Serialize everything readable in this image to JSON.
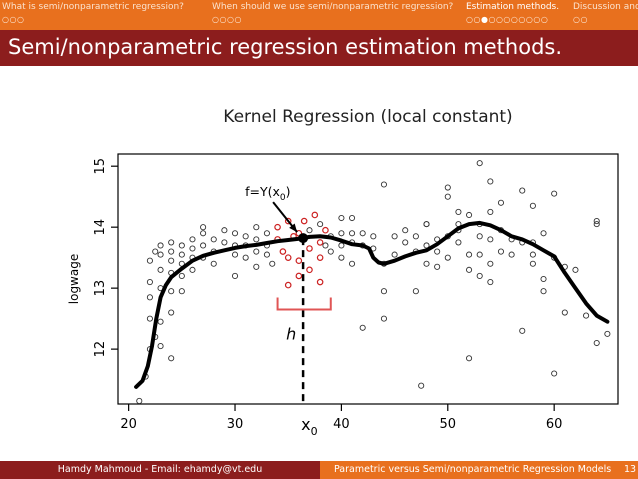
{
  "nav": {
    "sections": [
      {
        "label": "What is semi/nonparametric regression?",
        "dots": "○○○",
        "current": -1
      },
      {
        "label": "When should we use semi/nonparametric regression?",
        "dots": "○○○○",
        "current": -1
      },
      {
        "label": "Estimation methods.",
        "dots": "○○●○○○○○○○○",
        "current": 2
      },
      {
        "label": "Discussion and",
        "dots": "○○",
        "current": -1
      }
    ]
  },
  "frame": {
    "title": "Semi/nonparametric regression estimation methods."
  },
  "figure": {
    "title": "Kernel Regression (local constant)",
    "annotation_f": "f=Y(x",
    "annotation_f_sub": "0",
    "annotation_f_end": ")",
    "annotation_h": "h",
    "annotation_x0": "x",
    "annotation_x0_sub": "0"
  },
  "chart_data": {
    "type": "scatter",
    "title": "Kernel Regression (local constant)",
    "xlabel": "",
    "ylabel": "logwage",
    "xlim": [
      19,
      66
    ],
    "ylim": [
      11.1,
      15.2
    ],
    "xticks": [
      20,
      30,
      40,
      50,
      60
    ],
    "yticks": [
      12,
      13,
      14,
      15
    ],
    "x0": 36.4,
    "fx0": 13.82,
    "bandwidth": [
      34,
      39
    ],
    "points": [
      [
        21,
        11.15
      ],
      [
        21.6,
        11.55
      ],
      [
        22,
        12.0
      ],
      [
        22,
        12.5
      ],
      [
        22,
        12.85
      ],
      [
        22,
        13.1
      ],
      [
        22,
        13.45
      ],
      [
        22.5,
        12.2
      ],
      [
        22.5,
        13.6
      ],
      [
        23,
        12.05
      ],
      [
        23,
        12.45
      ],
      [
        23,
        13.0
      ],
      [
        23,
        13.3
      ],
      [
        23,
        13.55
      ],
      [
        23,
        13.7
      ],
      [
        24,
        11.85
      ],
      [
        24,
        12.6
      ],
      [
        24,
        12.95
      ],
      [
        24,
        13.25
      ],
      [
        24,
        13.45
      ],
      [
        24,
        13.6
      ],
      [
        24,
        13.75
      ],
      [
        25,
        12.95
      ],
      [
        25,
        13.2
      ],
      [
        25,
        13.4
      ],
      [
        25,
        13.55
      ],
      [
        25,
        13.7
      ],
      [
        26,
        13.3
      ],
      [
        26,
        13.5
      ],
      [
        26,
        13.65
      ],
      [
        26,
        13.8
      ],
      [
        27,
        13.5
      ],
      [
        27,
        13.7
      ],
      [
        27,
        13.9
      ],
      [
        27,
        14.0
      ],
      [
        28,
        13.4
      ],
      [
        28,
        13.6
      ],
      [
        28,
        13.8
      ],
      [
        29,
        13.75
      ],
      [
        29,
        13.95
      ],
      [
        30,
        13.2
      ],
      [
        30,
        13.55
      ],
      [
        30,
        13.7
      ],
      [
        30,
        13.9
      ],
      [
        31,
        13.5
      ],
      [
        31,
        13.7
      ],
      [
        31,
        13.85
      ],
      [
        32,
        13.35
      ],
      [
        32,
        13.6
      ],
      [
        32,
        13.8
      ],
      [
        32,
        14.0
      ],
      [
        33,
        13.55
      ],
      [
        33,
        13.7
      ],
      [
        33,
        13.9
      ],
      [
        33.5,
        13.4
      ],
      [
        37,
        13.95
      ],
      [
        38,
        14.05
      ],
      [
        38.5,
        13.7
      ],
      [
        39,
        13.6
      ],
      [
        39,
        13.85
      ],
      [
        40,
        13.5
      ],
      [
        40,
        13.7
      ],
      [
        40,
        13.9
      ],
      [
        40,
        14.15
      ],
      [
        41,
        13.4
      ],
      [
        41,
        13.75
      ],
      [
        41,
        13.9
      ],
      [
        41,
        14.15
      ],
      [
        42,
        13.7
      ],
      [
        42,
        13.9
      ],
      [
        42,
        12.35
      ],
      [
        43,
        13.65
      ],
      [
        43,
        13.85
      ],
      [
        44,
        13.4
      ],
      [
        44,
        14.7
      ],
      [
        44,
        12.5
      ],
      [
        44,
        12.95
      ],
      [
        45,
        13.55
      ],
      [
        45,
        13.85
      ],
      [
        46,
        13.75
      ],
      [
        46,
        13.95
      ],
      [
        47,
        13.6
      ],
      [
        47,
        13.85
      ],
      [
        47,
        12.95
      ],
      [
        47.5,
        11.4
      ],
      [
        48,
        13.4
      ],
      [
        48,
        13.7
      ],
      [
        48,
        14.05
      ],
      [
        48,
        14.05
      ],
      [
        49,
        13.35
      ],
      [
        49,
        13.6
      ],
      [
        49,
        13.8
      ],
      [
        50,
        13.5
      ],
      [
        50,
        13.85
      ],
      [
        50,
        14.5
      ],
      [
        50,
        14.65
      ],
      [
        51,
        13.75
      ],
      [
        51,
        13.95
      ],
      [
        51,
        14.05
      ],
      [
        51,
        14.25
      ],
      [
        52,
        13.3
      ],
      [
        52,
        13.55
      ],
      [
        52,
        14.2
      ],
      [
        52,
        11.85
      ],
      [
        53,
        13.2
      ],
      [
        53,
        13.55
      ],
      [
        53,
        13.85
      ],
      [
        53,
        14.05
      ],
      [
        53,
        15.05
      ],
      [
        54,
        13.1
      ],
      [
        54,
        13.4
      ],
      [
        54,
        13.8
      ],
      [
        54,
        14.25
      ],
      [
        54,
        14.75
      ],
      [
        55,
        13.6
      ],
      [
        55,
        13.95
      ],
      [
        55,
        14.4
      ],
      [
        56,
        13.55
      ],
      [
        56,
        13.8
      ],
      [
        57,
        12.3
      ],
      [
        57,
        13.75
      ],
      [
        57,
        14.6
      ],
      [
        58,
        13.4
      ],
      [
        58,
        13.55
      ],
      [
        58,
        13.75
      ],
      [
        58,
        14.35
      ],
      [
        59,
        13.9
      ],
      [
        59,
        12.95
      ],
      [
        59,
        13.15
      ],
      [
        60,
        11.6
      ],
      [
        60,
        13.5
      ],
      [
        60,
        14.55
      ],
      [
        61,
        12.6
      ],
      [
        61,
        13.35
      ],
      [
        62,
        13.3
      ],
      [
        63,
        12.55
      ],
      [
        64,
        12.1
      ],
      [
        64,
        14.05
      ],
      [
        64,
        14.1
      ],
      [
        65,
        12.25
      ]
    ],
    "highlighted_points": [
      [
        34,
        13.8
      ],
      [
        34,
        14.0
      ],
      [
        34.5,
        13.6
      ],
      [
        35,
        13.05
      ],
      [
        35,
        13.5
      ],
      [
        35,
        14.1
      ],
      [
        35.5,
        13.85
      ],
      [
        36,
        13.2
      ],
      [
        36,
        13.45
      ],
      [
        36,
        13.9
      ],
      [
        36.5,
        14.1
      ],
      [
        37,
        13.3
      ],
      [
        37,
        13.65
      ],
      [
        37.5,
        14.2
      ],
      [
        38,
        13.1
      ],
      [
        38,
        13.5
      ],
      [
        38,
        13.75
      ],
      [
        38.5,
        13.95
      ]
    ],
    "fit_curve": [
      [
        20.7,
        11.38
      ],
      [
        21.3,
        11.48
      ],
      [
        21.8,
        11.72
      ],
      [
        22.2,
        12.05
      ],
      [
        22.6,
        12.5
      ],
      [
        23,
        12.85
      ],
      [
        23.5,
        13.05
      ],
      [
        24,
        13.18
      ],
      [
        25,
        13.32
      ],
      [
        26,
        13.45
      ],
      [
        27,
        13.53
      ],
      [
        28,
        13.58
      ],
      [
        29,
        13.62
      ],
      [
        30,
        13.66
      ],
      [
        31,
        13.69
      ],
      [
        32,
        13.71
      ],
      [
        33,
        13.74
      ],
      [
        34,
        13.77
      ],
      [
        35,
        13.79
      ],
      [
        36,
        13.81
      ],
      [
        37,
        13.84
      ],
      [
        38,
        13.85
      ],
      [
        39,
        13.83
      ],
      [
        40,
        13.78
      ],
      [
        41,
        13.72
      ],
      [
        42,
        13.7
      ],
      [
        42.6,
        13.65
      ],
      [
        43,
        13.5
      ],
      [
        43.5,
        13.42
      ],
      [
        44,
        13.4
      ],
      [
        45,
        13.45
      ],
      [
        46,
        13.52
      ],
      [
        47,
        13.58
      ],
      [
        48,
        13.62
      ],
      [
        49,
        13.72
      ],
      [
        50,
        13.85
      ],
      [
        51,
        13.98
      ],
      [
        52,
        14.05
      ],
      [
        53,
        14.07
      ],
      [
        54,
        14.03
      ],
      [
        55,
        13.95
      ],
      [
        56,
        13.85
      ],
      [
        57,
        13.8
      ],
      [
        58,
        13.72
      ],
      [
        59,
        13.62
      ],
      [
        60,
        13.52
      ],
      [
        61,
        13.25
      ],
      [
        62,
        13.0
      ],
      [
        63,
        12.75
      ],
      [
        64,
        12.55
      ],
      [
        65,
        12.45
      ]
    ]
  },
  "footer": {
    "author": "Hamdy Mahmoud - Email: ehamdy@vt.edu",
    "talk_title": "Parametric versus Semi/nonparametric Regression Models",
    "page": "13"
  }
}
